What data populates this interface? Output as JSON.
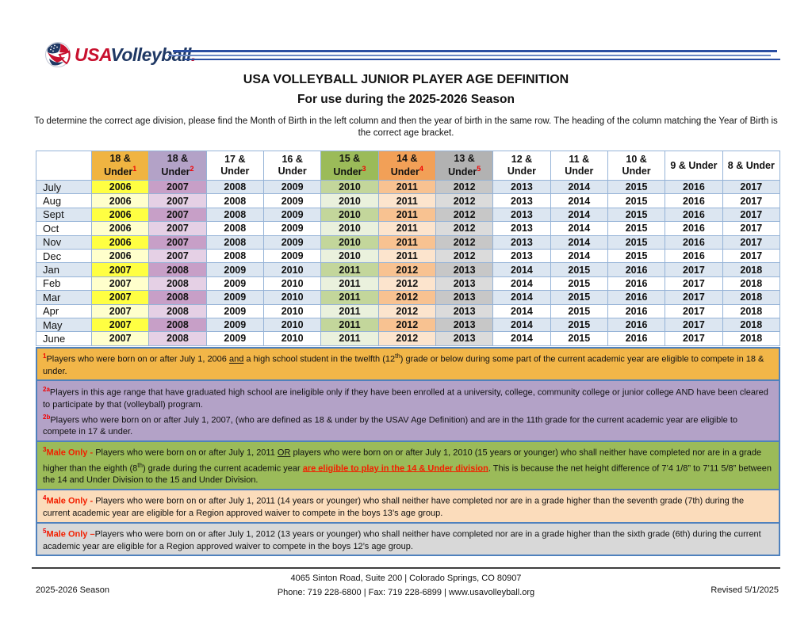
{
  "logo": {
    "usa": "USA",
    "volleyball": "Volleyball",
    "dot": "."
  },
  "title": "USA VOLLEYBALL JUNIOR PLAYER AGE DEFINITION",
  "subtitle": "For use during the 2025-2026 Season",
  "instructions": "To determine the correct age division, please find the Month of Birth in the left column and then the year of birth in the same row. The heading of the column matching the Year of Birth is the correct age bracket.",
  "colors": {
    "grid_border": "#95B3D7",
    "block_border": "#4F81BD",
    "accent_red": "#F20000",
    "logo_red": "#C8102E",
    "logo_navy": "#1F3864"
  },
  "table": {
    "columns": [
      {
        "line1": "",
        "line2": "",
        "sup": "",
        "header_bg": "#FFFFFF",
        "odd_bg": "#DCE6F1",
        "even_bg": "#FFFFFF"
      },
      {
        "line1": "18 &",
        "line2": "Under",
        "sup": "1",
        "header_bg": "#F0B441",
        "odd_bg": "#FFFF42",
        "even_bg": "#FFFFCC"
      },
      {
        "line1": "18 &",
        "line2": "Under",
        "sup": "2",
        "header_bg": "#B3A2C7",
        "odd_bg": "#C79FC7",
        "even_bg": "#E5D0E5"
      },
      {
        "line1": "17 &",
        "line2": "Under",
        "sup": "",
        "header_bg": "#FFFFFF",
        "odd_bg": "#DCE6F1",
        "even_bg": "#FFFFFF"
      },
      {
        "line1": "16 &",
        "line2": "Under",
        "sup": "",
        "header_bg": "#FFFFFF",
        "odd_bg": "#DCE6F1",
        "even_bg": "#FFFFFF"
      },
      {
        "line1": "15 &",
        "line2": "Under",
        "sup": "3",
        "header_bg": "#9BBB59",
        "odd_bg": "#C3D69B",
        "even_bg": "#EAF1DD"
      },
      {
        "line1": "14 &",
        "line2": "Under",
        "sup": "4",
        "header_bg": "#F2A057",
        "odd_bg": "#F8C291",
        "even_bg": "#FCE4CD"
      },
      {
        "line1": "13 &",
        "line2": "Under",
        "sup": "5",
        "header_bg": "#B2B2B2",
        "odd_bg": "#C7C7C7",
        "even_bg": "#DBDBDB"
      },
      {
        "line1": "12 &",
        "line2": "Under",
        "sup": "",
        "header_bg": "#FFFFFF",
        "odd_bg": "#DCE6F1",
        "even_bg": "#FFFFFF"
      },
      {
        "line1": "11 &",
        "line2": "Under",
        "sup": "",
        "header_bg": "#FFFFFF",
        "odd_bg": "#DCE6F1",
        "even_bg": "#FFFFFF"
      },
      {
        "line1": "10 &",
        "line2": "Under",
        "sup": "",
        "header_bg": "#FFFFFF",
        "odd_bg": "#DCE6F1",
        "even_bg": "#FFFFFF"
      },
      {
        "line1": "9 & Under",
        "line2": "",
        "sup": "",
        "header_bg": "#FFFFFF",
        "odd_bg": "#DCE6F1",
        "even_bg": "#FFFFFF"
      },
      {
        "line1": "8 & Under",
        "line2": "",
        "sup": "",
        "header_bg": "#FFFFFF",
        "odd_bg": "#DCE6F1",
        "even_bg": "#FFFFFF"
      }
    ],
    "rows": [
      {
        "month": "July",
        "years": [
          "2006",
          "2007",
          "2008",
          "2009",
          "2010",
          "2011",
          "2012",
          "2013",
          "2014",
          "2015",
          "2016",
          "2017"
        ]
      },
      {
        "month": "Aug",
        "years": [
          "2006",
          "2007",
          "2008",
          "2009",
          "2010",
          "2011",
          "2012",
          "2013",
          "2014",
          "2015",
          "2016",
          "2017"
        ]
      },
      {
        "month": "Sept",
        "years": [
          "2006",
          "2007",
          "2008",
          "2009",
          "2010",
          "2011",
          "2012",
          "2013",
          "2014",
          "2015",
          "2016",
          "2017"
        ]
      },
      {
        "month": "Oct",
        "years": [
          "2006",
          "2007",
          "2008",
          "2009",
          "2010",
          "2011",
          "2012",
          "2013",
          "2014",
          "2015",
          "2016",
          "2017"
        ]
      },
      {
        "month": "Nov",
        "years": [
          "2006",
          "2007",
          "2008",
          "2009",
          "2010",
          "2011",
          "2012",
          "2013",
          "2014",
          "2015",
          "2016",
          "2017"
        ]
      },
      {
        "month": "Dec",
        "years": [
          "2006",
          "2007",
          "2008",
          "2009",
          "2010",
          "2011",
          "2012",
          "2013",
          "2014",
          "2015",
          "2016",
          "2017"
        ]
      },
      {
        "month": "Jan",
        "years": [
          "2007",
          "2008",
          "2009",
          "2010",
          "2011",
          "2012",
          "2013",
          "2014",
          "2015",
          "2016",
          "2017",
          "2018"
        ]
      },
      {
        "month": "Feb",
        "years": [
          "2007",
          "2008",
          "2009",
          "2010",
          "2011",
          "2012",
          "2013",
          "2014",
          "2015",
          "2016",
          "2017",
          "2018"
        ]
      },
      {
        "month": "Mar",
        "years": [
          "2007",
          "2008",
          "2009",
          "2010",
          "2011",
          "2012",
          "2013",
          "2014",
          "2015",
          "2016",
          "2017",
          "2018"
        ]
      },
      {
        "month": "Apr",
        "years": [
          "2007",
          "2008",
          "2009",
          "2010",
          "2011",
          "2012",
          "2013",
          "2014",
          "2015",
          "2016",
          "2017",
          "2018"
        ]
      },
      {
        "month": "May",
        "years": [
          "2007",
          "2008",
          "2009",
          "2010",
          "2011",
          "2012",
          "2013",
          "2014",
          "2015",
          "2016",
          "2017",
          "2018"
        ]
      },
      {
        "month": "June",
        "years": [
          "2007",
          "2008",
          "2009",
          "2010",
          "2011",
          "2012",
          "2013",
          "2014",
          "2015",
          "2016",
          "2017",
          "2018"
        ]
      }
    ]
  },
  "footnotes": [
    {
      "bg": "#F2B648",
      "paragraphs": [
        [
          {
            "t": "1",
            "s": "supred"
          },
          {
            "t": "Players who were born on or after July 1, 2006 ",
            "s": "n"
          },
          {
            "t": "and",
            "s": "u"
          },
          {
            "t": " a high school student in the twelfth (12",
            "s": "n"
          },
          {
            "t": "th",
            "s": "sup"
          },
          {
            "t": ") grade or below during some part of the current academic year are eligible to compete in 18 & under.",
            "s": "n"
          }
        ]
      ]
    },
    {
      "bg": "#B3A2C7",
      "paragraphs": [
        [
          {
            "t": "2a",
            "s": "supred"
          },
          {
            "t": "Players in this age range that have graduated high school are ineligible only if they have been enrolled at a university, college, community college or junior college AND have been cleared to participate by that (volleyball) program.",
            "s": "n"
          }
        ],
        [
          {
            "t": "2b",
            "s": "supred"
          },
          {
            "t": "Players who were born on or after July 1, 2007, (who are defined as 18 & under by the USAV Age Definition) and are in the 11th grade for the current academic year are eligible to compete in 17 & under.",
            "s": "n"
          }
        ]
      ]
    },
    {
      "bg": "#9BBB59",
      "paragraphs": [
        [
          {
            "t": "3",
            "s": "supred"
          },
          {
            "t": "Male Only - ",
            "s": "rb"
          },
          {
            "t": "Players who were born on or after July 1, 2011 ",
            "s": "n"
          },
          {
            "t": "OR",
            "s": "u"
          },
          {
            "t": " players who were born on or after July 1, 2010 (15 years or younger) who shall neither have completed nor are in a grade higher than the eighth (8",
            "s": "n"
          },
          {
            "t": "th",
            "s": "sup"
          },
          {
            "t": ") grade during the current academic year ",
            "s": "n"
          },
          {
            "t": "are eligible to play in the 14 & Under division",
            "s": "rbu"
          },
          {
            "t": ".  This is  because the net height difference of 7’4 1/8” to 7’11 5/8” between the 14 and Under Division to the 15 and Under Division.",
            "s": "n"
          }
        ]
      ]
    },
    {
      "bg": "#FBDCBB",
      "paragraphs": [
        [
          {
            "t": "4",
            "s": "supred"
          },
          {
            "t": "Male Only - ",
            "s": "rb"
          },
          {
            "t": "Players who were born on or after July 1, 2011 (14 years or younger) who shall neither have completed nor are in a grade higher than the seventh grade (7th) during the current academic year are eligible for a Region approved waiver to compete in the boys 13’s age group.",
            "s": "n"
          }
        ]
      ]
    },
    {
      "bg": "#D8D8D8",
      "paragraphs": [
        [
          {
            "t": "5",
            "s": "supred"
          },
          {
            "t": "Male Only –",
            "s": "rb"
          },
          {
            "t": "Players who were born on or after July 1, 2012 (13 years or younger) who shall neither have completed nor are in a grade higher than the sixth grade (6th) during the current academic year are eligible for a Region approved waiver to compete in the boys 12’s age group.",
            "s": "n"
          }
        ]
      ]
    }
  ],
  "footer": {
    "left": "2025-2026 Season",
    "address": "4065 Sinton Road, Suite 200   |   Colorado Springs, CO  80907",
    "contact": "Phone:  719 228-6800   |   Fax:  719 228-6899   |   www.usavolleyball.org",
    "right": "Revised 5/1/2025"
  }
}
